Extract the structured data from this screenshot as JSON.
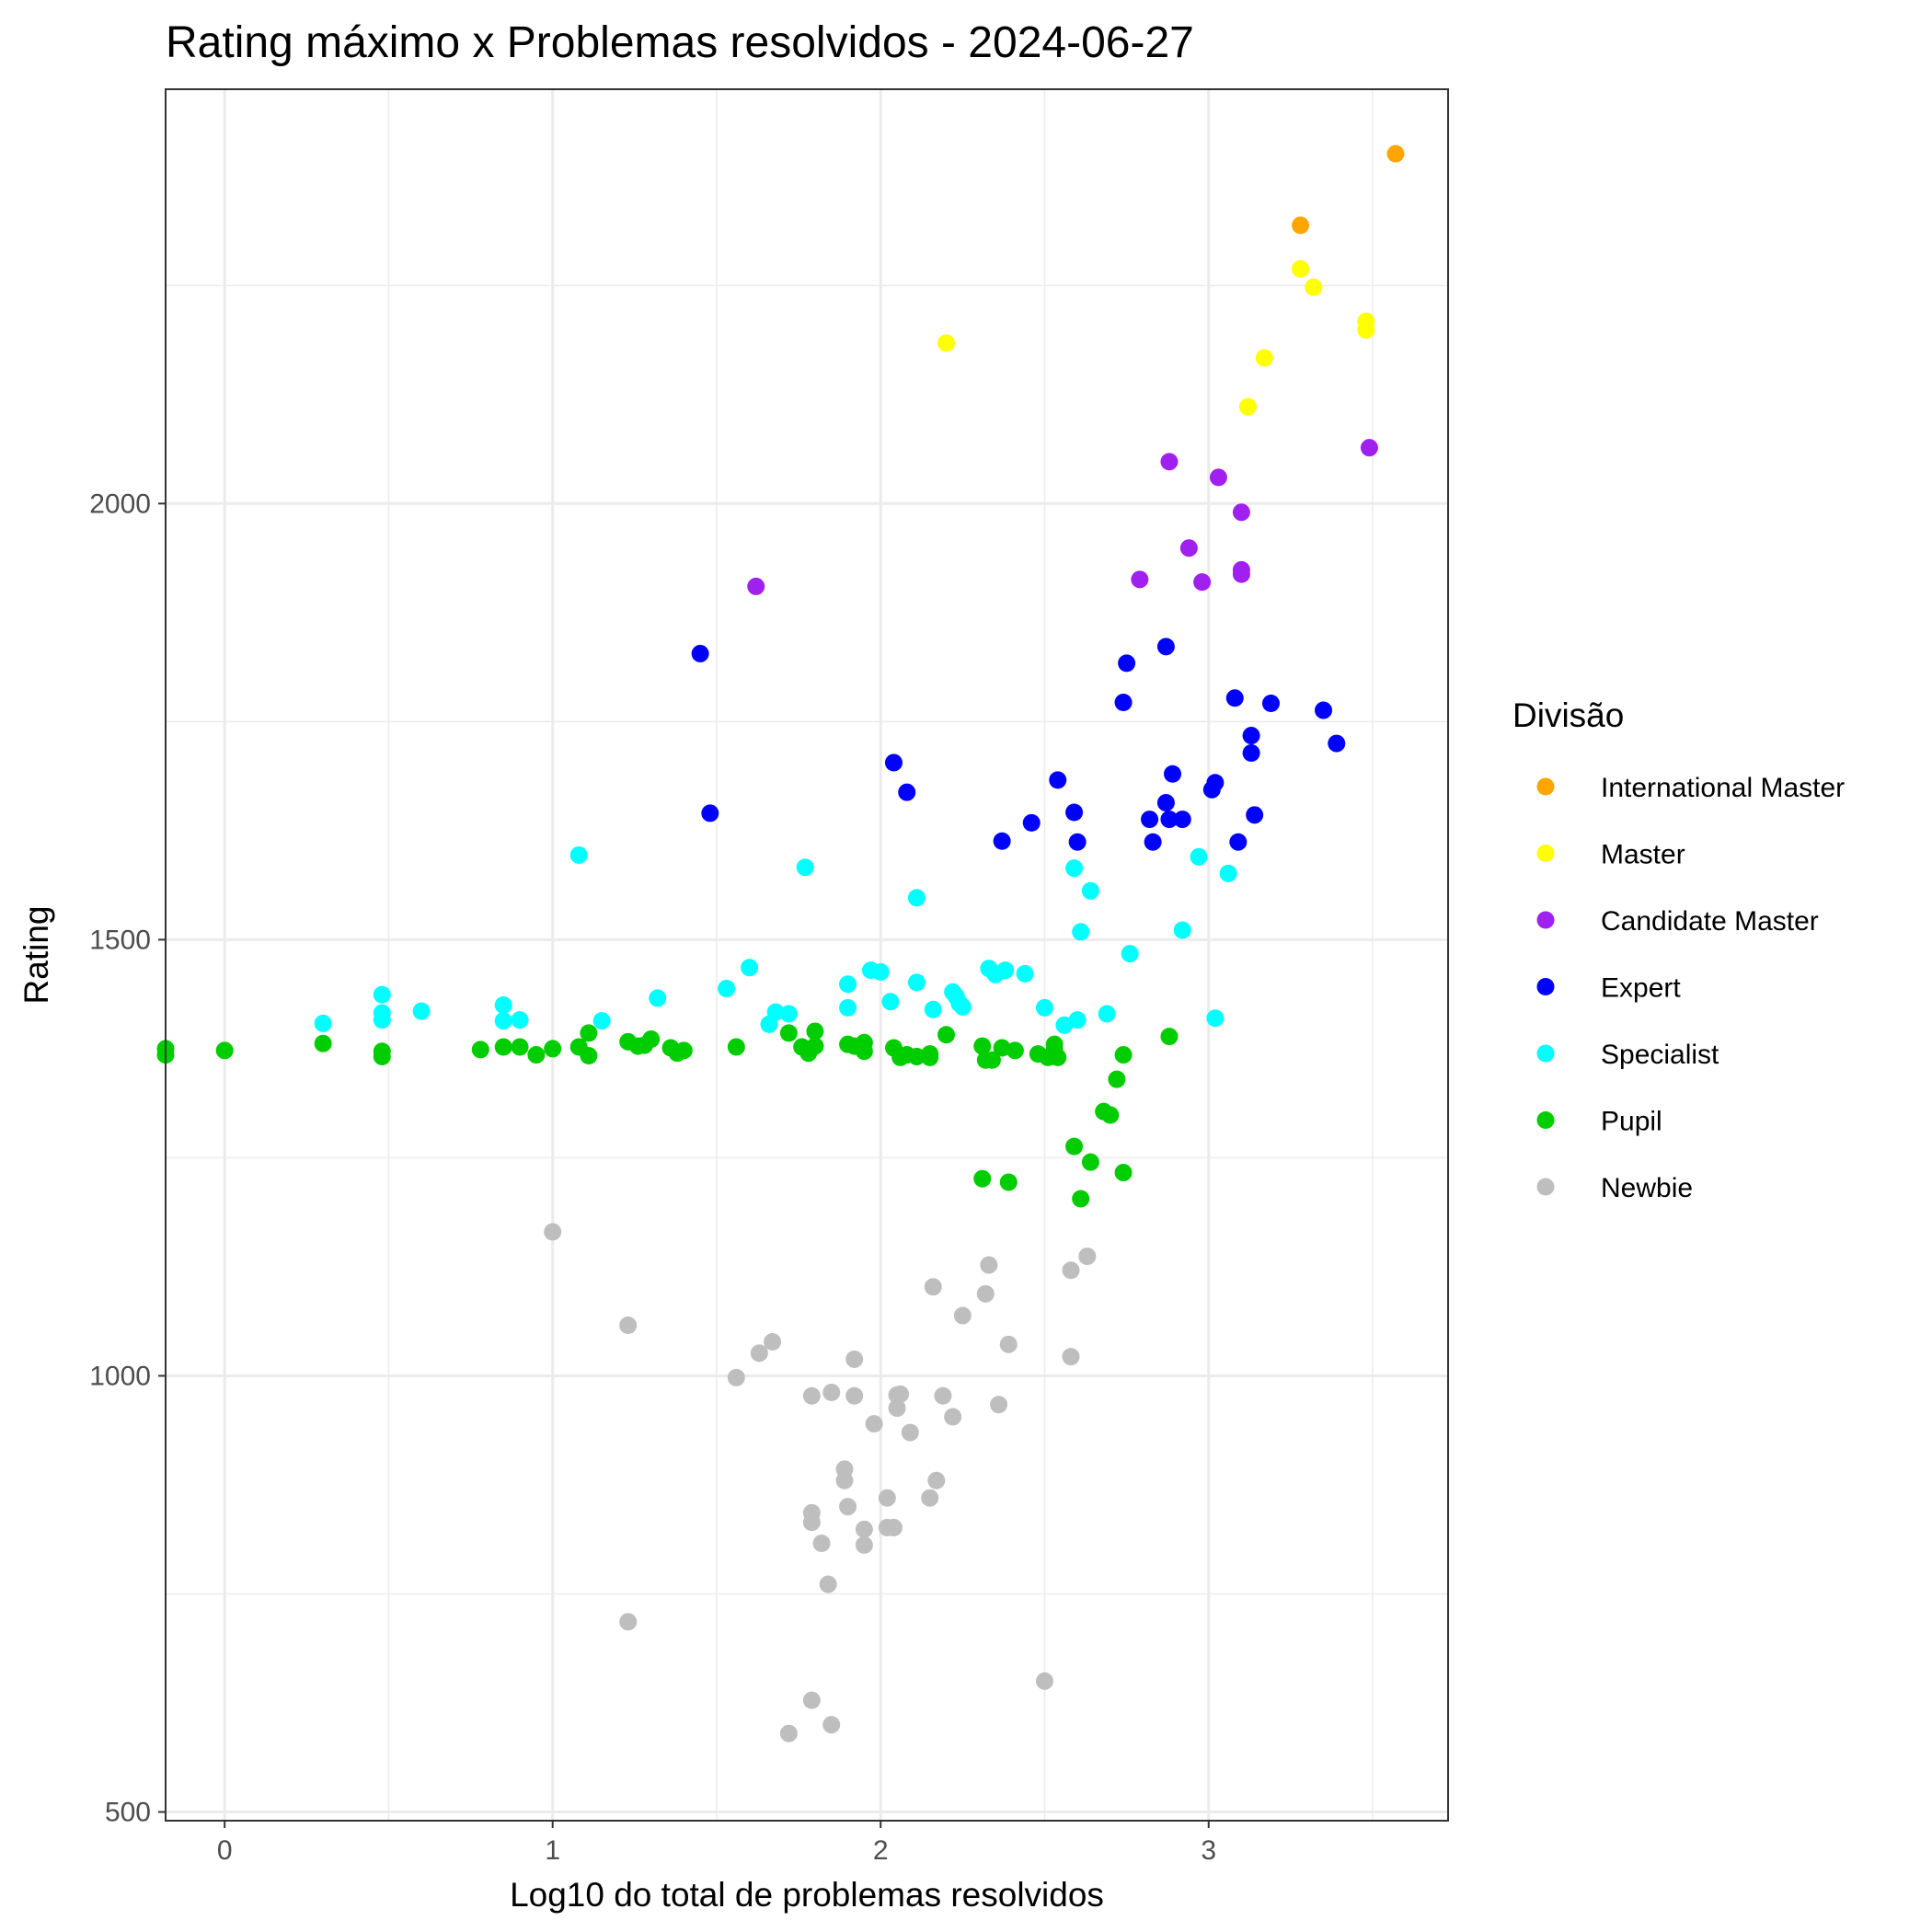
{
  "chart_data": {
    "type": "scatter",
    "title": "Rating máximo x Problemas resolvidos - 2024-06-27",
    "xlabel": "Log10 do total de problemas resolvidos",
    "ylabel": "Rating",
    "xlim": [
      -0.18,
      3.73
    ],
    "ylim": [
      490,
      2475
    ],
    "x_ticks": [
      0,
      1,
      2,
      3
    ],
    "y_ticks": [
      500,
      1000,
      1500,
      2000
    ],
    "grid": true,
    "legend_position": "right",
    "legend_title": "Divisão",
    "series": [
      {
        "name": "International Master",
        "color": "#FFA500",
        "points": [
          [
            3.57,
            2401
          ],
          [
            3.28,
            2319
          ]
        ]
      },
      {
        "name": "Master",
        "color": "#FFFF00",
        "points": [
          [
            3.28,
            2269
          ],
          [
            3.32,
            2248
          ],
          [
            3.48,
            2209
          ],
          [
            3.48,
            2199
          ],
          [
            2.2,
            2184
          ],
          [
            3.17,
            2167
          ],
          [
            3.12,
            2111
          ]
        ]
      },
      {
        "name": "Candidate Master",
        "color": "#A020F0",
        "points": [
          [
            2.88,
            2048
          ],
          [
            3.49,
            2064
          ],
          [
            3.03,
            2030
          ],
          [
            3.1,
            1990
          ],
          [
            2.94,
            1949
          ],
          [
            3.1,
            1924
          ],
          [
            3.1,
            1919
          ],
          [
            2.79,
            1913
          ],
          [
            2.98,
            1910
          ],
          [
            1.62,
            1905
          ]
        ]
      },
      {
        "name": "Expert",
        "color": "#0000FF",
        "points": [
          [
            1.45,
            1828
          ],
          [
            2.87,
            1836
          ],
          [
            2.75,
            1817
          ],
          [
            3.08,
            1777
          ],
          [
            2.74,
            1772
          ],
          [
            3.19,
            1771
          ],
          [
            3.35,
            1763
          ],
          [
            3.13,
            1734
          ],
          [
            3.39,
            1725
          ],
          [
            3.13,
            1714
          ],
          [
            2.04,
            1703
          ],
          [
            2.89,
            1690
          ],
          [
            3.02,
            1680
          ],
          [
            3.01,
            1672
          ],
          [
            2.54,
            1683
          ],
          [
            2.08,
            1669
          ],
          [
            2.87,
            1657
          ],
          [
            1.48,
            1645
          ],
          [
            2.59,
            1646
          ],
          [
            3.14,
            1643
          ],
          [
            2.82,
            1638
          ],
          [
            2.88,
            1638
          ],
          [
            2.92,
            1638
          ],
          [
            2.46,
            1634
          ],
          [
            2.37,
            1613
          ],
          [
            2.6,
            1612
          ],
          [
            2.83,
            1612
          ],
          [
            3.09,
            1612
          ]
        ]
      },
      {
        "name": "Specialist",
        "color": "#00FFFF",
        "points": [
          [
            1.08,
            1597
          ],
          [
            2.97,
            1595
          ],
          [
            1.77,
            1583
          ],
          [
            2.59,
            1582
          ],
          [
            3.06,
            1576
          ],
          [
            2.64,
            1556
          ],
          [
            2.11,
            1548
          ],
          [
            2.61,
            1509
          ],
          [
            2.92,
            1511
          ],
          [
            2.76,
            1484
          ],
          [
            1.6,
            1468
          ],
          [
            2.33,
            1467
          ],
          [
            2.38,
            1465
          ],
          [
            1.97,
            1465
          ],
          [
            2.0,
            1463
          ],
          [
            2.44,
            1461
          ],
          [
            2.35,
            1460
          ],
          [
            1.9,
            1449
          ],
          [
            2.11,
            1451
          ],
          [
            1.53,
            1444
          ],
          [
            2.22,
            1440
          ],
          [
            2.23,
            1435
          ],
          [
            0.48,
            1437
          ],
          [
            1.32,
            1433
          ],
          [
            2.24,
            1427
          ],
          [
            2.03,
            1429
          ],
          [
            2.25,
            1423
          ],
          [
            0.85,
            1425
          ],
          [
            1.9,
            1422
          ],
          [
            2.5,
            1422
          ],
          [
            2.16,
            1420
          ],
          [
            0.48,
            1416
          ],
          [
            0.6,
            1418
          ],
          [
            1.68,
            1417
          ],
          [
            1.72,
            1415
          ],
          [
            2.69,
            1415
          ],
          [
            0.48,
            1408
          ],
          [
            0.85,
            1407
          ],
          [
            0.9,
            1408
          ],
          [
            1.15,
            1407
          ],
          [
            3.02,
            1410
          ],
          [
            2.6,
            1408
          ],
          [
            1.66,
            1403
          ],
          [
            0.3,
            1404
          ],
          [
            2.56,
            1402
          ]
        ]
      },
      {
        "name": "Pupil",
        "color": "#00CD00",
        "points": [
          [
            -0.18,
            1375
          ],
          [
            -0.18,
            1368
          ],
          [
            0.0,
            1373
          ],
          [
            0.3,
            1381
          ],
          [
            0.48,
            1372
          ],
          [
            0.48,
            1366
          ],
          [
            0.78,
            1374
          ],
          [
            0.85,
            1377
          ],
          [
            0.9,
            1377
          ],
          [
            0.95,
            1368
          ],
          [
            1.0,
            1375
          ],
          [
            1.08,
            1377
          ],
          [
            1.11,
            1393
          ],
          [
            1.11,
            1367
          ],
          [
            1.23,
            1383
          ],
          [
            1.26,
            1378
          ],
          [
            1.28,
            1379
          ],
          [
            1.3,
            1386
          ],
          [
            1.36,
            1376
          ],
          [
            1.38,
            1370
          ],
          [
            1.4,
            1373
          ],
          [
            1.56,
            1377
          ],
          [
            1.72,
            1393
          ],
          [
            1.76,
            1377
          ],
          [
            1.78,
            1370
          ],
          [
            1.8,
            1378
          ],
          [
            1.8,
            1395
          ],
          [
            1.9,
            1380
          ],
          [
            1.92,
            1378
          ],
          [
            1.95,
            1382
          ],
          [
            1.95,
            1372
          ],
          [
            2.04,
            1376
          ],
          [
            2.06,
            1365
          ],
          [
            2.08,
            1368
          ],
          [
            2.11,
            1366
          ],
          [
            2.15,
            1369
          ],
          [
            2.15,
            1365
          ],
          [
            2.2,
            1391
          ],
          [
            2.31,
            1378
          ],
          [
            2.32,
            1362
          ],
          [
            2.34,
            1362
          ],
          [
            2.37,
            1376
          ],
          [
            2.41,
            1373
          ],
          [
            2.48,
            1369
          ],
          [
            2.51,
            1365
          ],
          [
            2.53,
            1374
          ],
          [
            2.53,
            1380
          ],
          [
            2.54,
            1365
          ],
          [
            2.74,
            1368
          ],
          [
            2.88,
            1389
          ],
          [
            2.72,
            1340
          ],
          [
            2.68,
            1303
          ],
          [
            2.7,
            1299
          ],
          [
            2.59,
            1263
          ],
          [
            2.64,
            1245
          ],
          [
            2.74,
            1233
          ],
          [
            2.31,
            1226
          ],
          [
            2.39,
            1222
          ],
          [
            2.61,
            1203
          ]
        ]
      },
      {
        "name": "Newbie",
        "color": "#BEBEBE",
        "points": [
          [
            1.0,
            1165
          ],
          [
            2.63,
            1137
          ],
          [
            2.33,
            1127
          ],
          [
            2.58,
            1121
          ],
          [
            2.16,
            1102
          ],
          [
            2.32,
            1094
          ],
          [
            1.23,
            1058
          ],
          [
            2.25,
            1069
          ],
          [
            1.67,
            1039
          ],
          [
            2.39,
            1036
          ],
          [
            1.63,
            1026
          ],
          [
            2.58,
            1022
          ],
          [
            1.92,
            1019
          ],
          [
            1.56,
            998
          ],
          [
            1.85,
            981
          ],
          [
            1.79,
            977
          ],
          [
            1.92,
            977
          ],
          [
            2.05,
            978
          ],
          [
            2.06,
            979
          ],
          [
            2.19,
            977
          ],
          [
            2.05,
            963
          ],
          [
            2.36,
            967
          ],
          [
            2.22,
            953
          ],
          [
            1.98,
            945
          ],
          [
            2.09,
            935
          ],
          [
            1.89,
            893
          ],
          [
            1.89,
            880
          ],
          [
            2.17,
            880
          ],
          [
            2.02,
            860
          ],
          [
            2.15,
            860
          ],
          [
            1.9,
            850
          ],
          [
            1.79,
            843
          ],
          [
            1.79,
            832
          ],
          [
            2.02,
            826
          ],
          [
            2.04,
            826
          ],
          [
            1.95,
            824
          ],
          [
            1.82,
            808
          ],
          [
            1.95,
            806
          ],
          [
            1.84,
            761
          ],
          [
            1.23,
            718
          ],
          [
            2.5,
            650
          ],
          [
            1.79,
            628
          ],
          [
            1.85,
            600
          ],
          [
            1.72,
            590
          ]
        ]
      }
    ]
  }
}
